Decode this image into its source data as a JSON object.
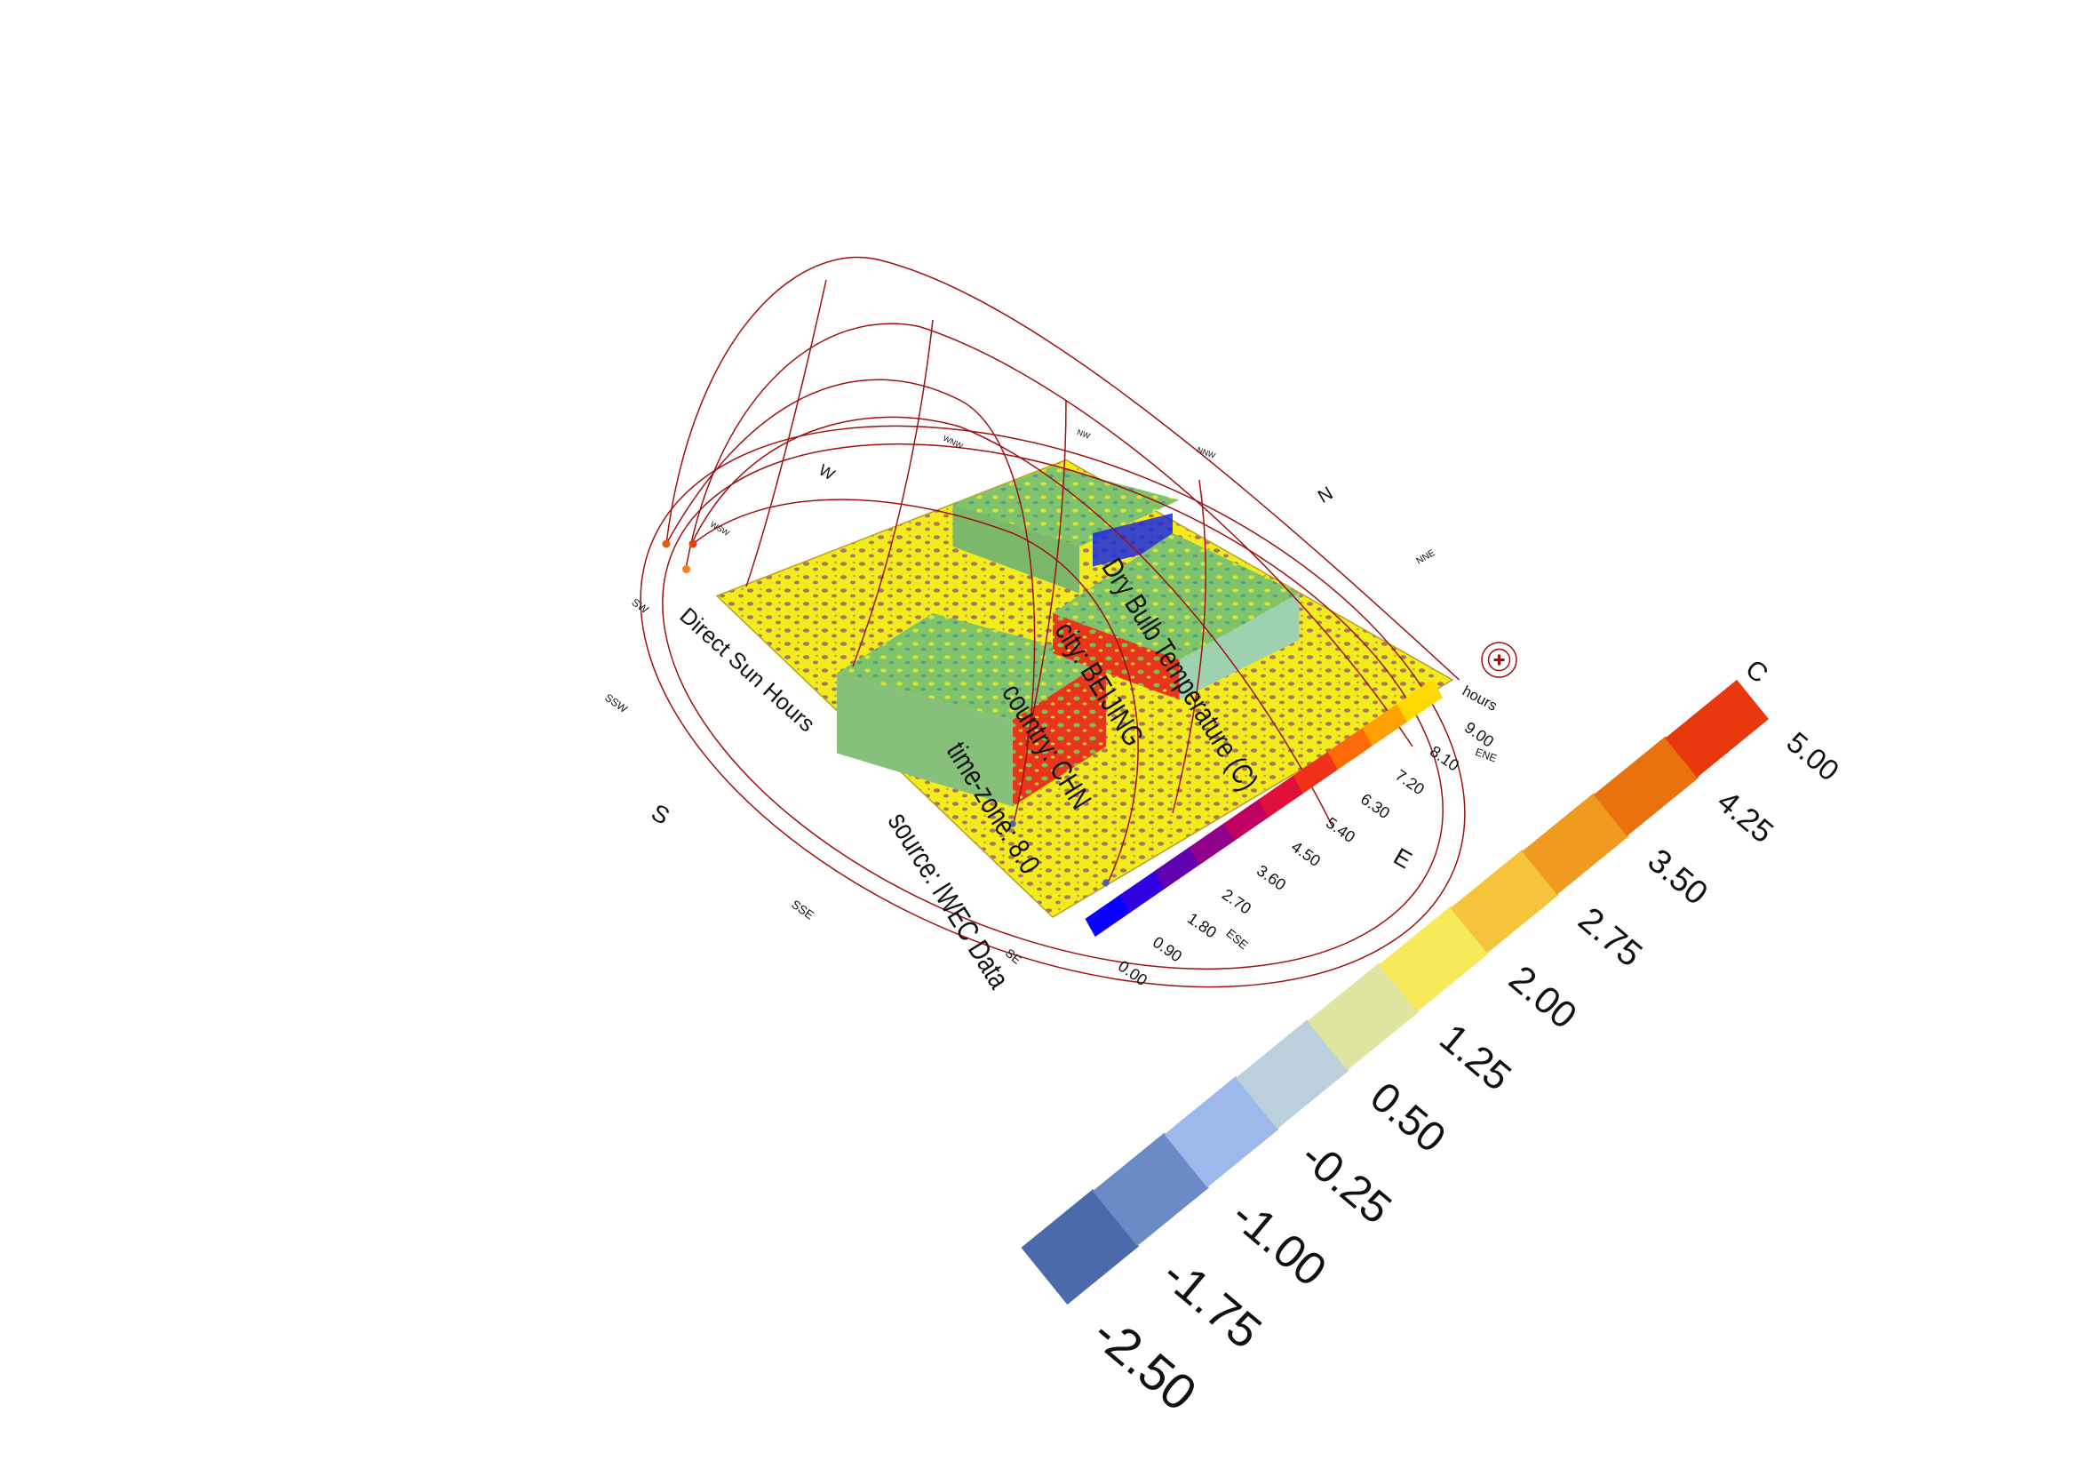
{
  "info": {
    "lines": [
      "Dry Bulb Temperature (C)",
      "city: BEIJING",
      "country: CHN",
      "time-zone: 8.0",
      "source: IWEC Data"
    ]
  },
  "sun_hours_legend": {
    "title": "Direct Sun Hours",
    "unit": "hours",
    "labels": [
      "0.00",
      "0.90",
      "1.80",
      "2.70",
      "3.60",
      "4.50",
      "5.40",
      "6.30",
      "7.20",
      "8.10",
      "9.00"
    ]
  },
  "temperature_legend": {
    "unit": "C",
    "labels": [
      "-2.50",
      "-1.75",
      "-1.00",
      "-0.25",
      "0.50",
      "1.25",
      "2.00",
      "2.75",
      "3.50",
      "4.25",
      "5.00"
    ]
  },
  "compass": {
    "labels": [
      {
        "text": "N"
      },
      {
        "text": "NNE"
      },
      {
        "text": "ENE"
      },
      {
        "text": "E"
      },
      {
        "text": "ESE"
      },
      {
        "text": "SE"
      },
      {
        "text": "SSE"
      },
      {
        "text": "S"
      },
      {
        "text": "SSW"
      },
      {
        "text": "SW"
      },
      {
        "text": "WSW"
      },
      {
        "text": "W"
      },
      {
        "text": "WNW"
      },
      {
        "text": "NW"
      },
      {
        "text": "NNW"
      }
    ]
  }
}
